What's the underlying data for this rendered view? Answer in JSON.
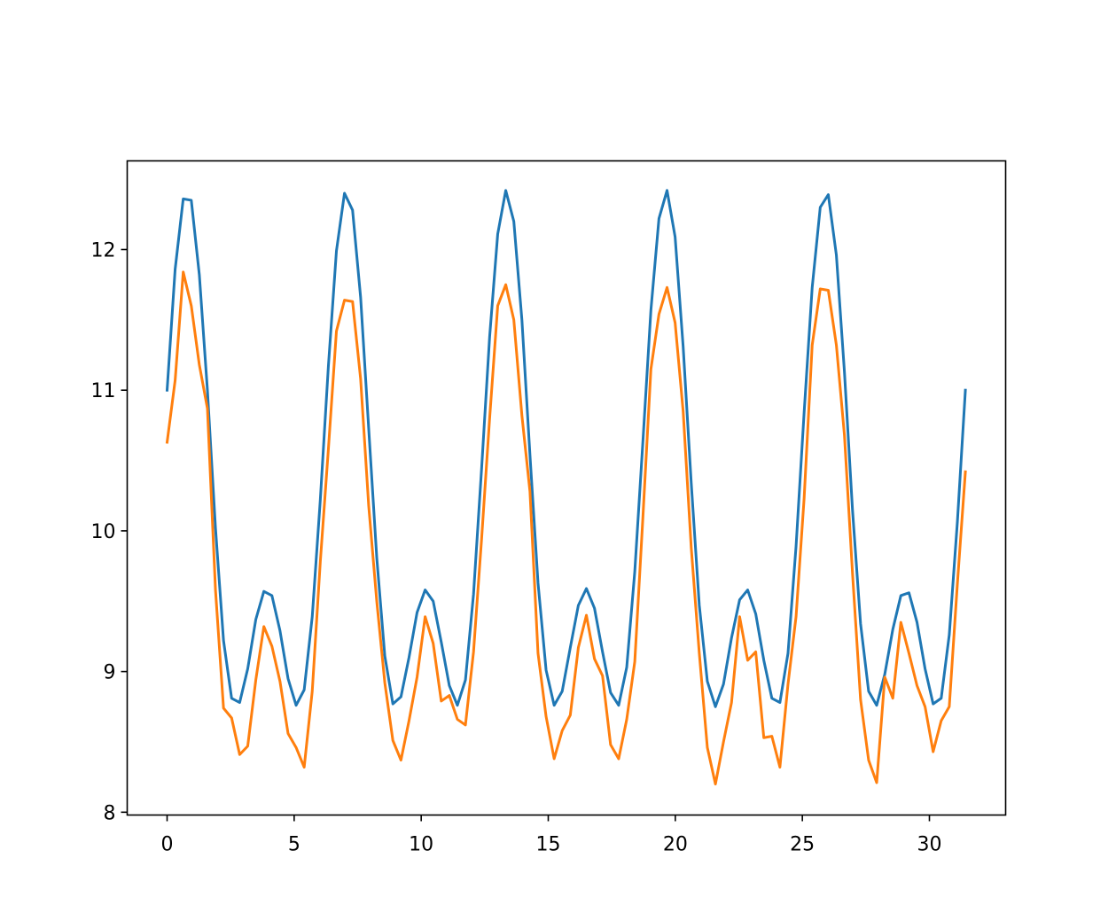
{
  "chart_data": {
    "type": "line",
    "title": "",
    "xlabel": "",
    "ylabel": "",
    "xlim": [
      -1.57,
      33.0
    ],
    "ylim": [
      7.98,
      12.63
    ],
    "xticks": [
      0,
      5,
      10,
      15,
      20,
      25,
      30
    ],
    "xtick_labels": [
      "0",
      "5",
      "10",
      "15",
      "20",
      "25",
      "30"
    ],
    "yticks": [
      8,
      9,
      10,
      11,
      12
    ],
    "ytick_labels": [
      "8",
      "9",
      "10",
      "11",
      "12"
    ],
    "grid": false,
    "legend": null,
    "x": [
      0.0,
      0.317,
      0.635,
      0.952,
      1.269,
      1.587,
      1.904,
      2.221,
      2.539,
      2.856,
      3.173,
      3.491,
      3.808,
      4.125,
      4.443,
      4.76,
      5.077,
      5.395,
      5.712,
      6.029,
      6.347,
      6.664,
      6.981,
      7.299,
      7.616,
      7.933,
      8.251,
      8.568,
      8.885,
      9.203,
      9.52,
      9.837,
      10.155,
      10.472,
      10.789,
      11.107,
      11.424,
      11.741,
      12.059,
      12.376,
      12.693,
      13.011,
      13.328,
      13.645,
      13.963,
      14.28,
      14.597,
      14.915,
      15.232,
      15.549,
      15.867,
      16.184,
      16.501,
      16.819,
      17.136,
      17.453,
      17.771,
      18.088,
      18.405,
      18.723,
      19.04,
      19.357,
      19.675,
      19.992,
      20.309,
      20.627,
      20.944,
      21.261,
      21.579,
      21.896,
      22.213,
      22.531,
      22.848,
      23.165,
      23.483,
      23.8,
      24.117,
      24.435,
      24.752,
      25.069,
      25.387,
      25.704,
      26.021,
      26.339,
      26.656,
      26.973,
      27.291,
      27.608,
      27.925,
      28.243,
      28.56,
      28.877,
      29.195,
      29.512,
      29.829,
      30.147,
      30.464,
      30.781,
      31.099,
      31.416
    ],
    "series": [
      {
        "color": "#1f77b4",
        "values": [
          11.0,
          11.86,
          12.36,
          12.35,
          11.82,
          11.0,
          10.02,
          9.22,
          8.81,
          8.78,
          9.02,
          9.37,
          9.57,
          9.54,
          9.29,
          8.95,
          8.76,
          8.87,
          9.39,
          10.22,
          11.17,
          11.99,
          12.4,
          12.28,
          11.66,
          10.73,
          9.81,
          9.11,
          8.77,
          8.82,
          9.1,
          9.42,
          9.58,
          9.5,
          9.21,
          8.9,
          8.76,
          8.94,
          9.55,
          10.44,
          11.38,
          12.11,
          12.42,
          12.2,
          11.5,
          10.54,
          9.63,
          9.01,
          8.76,
          8.86,
          9.17,
          9.47,
          9.59,
          9.45,
          9.14,
          8.85,
          8.76,
          9.03,
          9.71,
          10.63,
          11.57,
          12.22,
          12.42,
          12.09,
          11.31,
          10.34,
          9.47,
          8.93,
          8.75,
          8.91,
          9.24,
          9.51,
          9.58,
          9.41,
          9.08,
          8.81,
          8.78,
          9.13,
          9.89,
          10.84,
          11.73,
          12.3,
          12.39,
          11.96,
          11.13,
          10.15,
          9.34,
          8.86,
          8.76,
          8.98,
          9.3,
          9.54,
          9.56,
          9.35,
          9.02,
          8.77,
          8.81,
          9.26,
          10.06,
          11.0
        ]
      },
      {
        "color": "#ff7f0e",
        "values": [
          10.63,
          11.07,
          11.84,
          11.6,
          11.18,
          10.87,
          9.58,
          8.74,
          8.67,
          8.41,
          8.47,
          8.94,
          9.32,
          9.18,
          8.93,
          8.56,
          8.46,
          8.32,
          8.86,
          9.78,
          10.58,
          11.42,
          11.64,
          11.63,
          11.08,
          10.18,
          9.5,
          8.92,
          8.51,
          8.37,
          8.65,
          8.96,
          9.39,
          9.2,
          8.79,
          8.83,
          8.66,
          8.62,
          9.14,
          9.94,
          10.8,
          11.6,
          11.75,
          11.5,
          10.82,
          10.28,
          9.13,
          8.68,
          8.38,
          8.58,
          8.69,
          9.17,
          9.4,
          9.09,
          8.97,
          8.48,
          8.38,
          8.66,
          9.07,
          10.09,
          11.15,
          11.54,
          11.73,
          11.48,
          10.85,
          9.88,
          9.13,
          8.46,
          8.2,
          8.5,
          8.78,
          9.39,
          9.08,
          9.14,
          8.53,
          8.54,
          8.32,
          8.91,
          9.39,
          10.23,
          11.32,
          11.72,
          11.71,
          11.32,
          10.68,
          9.7,
          8.8,
          8.37,
          8.21,
          8.96,
          8.81,
          9.35,
          9.13,
          8.9,
          8.75,
          8.43,
          8.65,
          8.75,
          9.62,
          10.42
        ]
      }
    ]
  }
}
